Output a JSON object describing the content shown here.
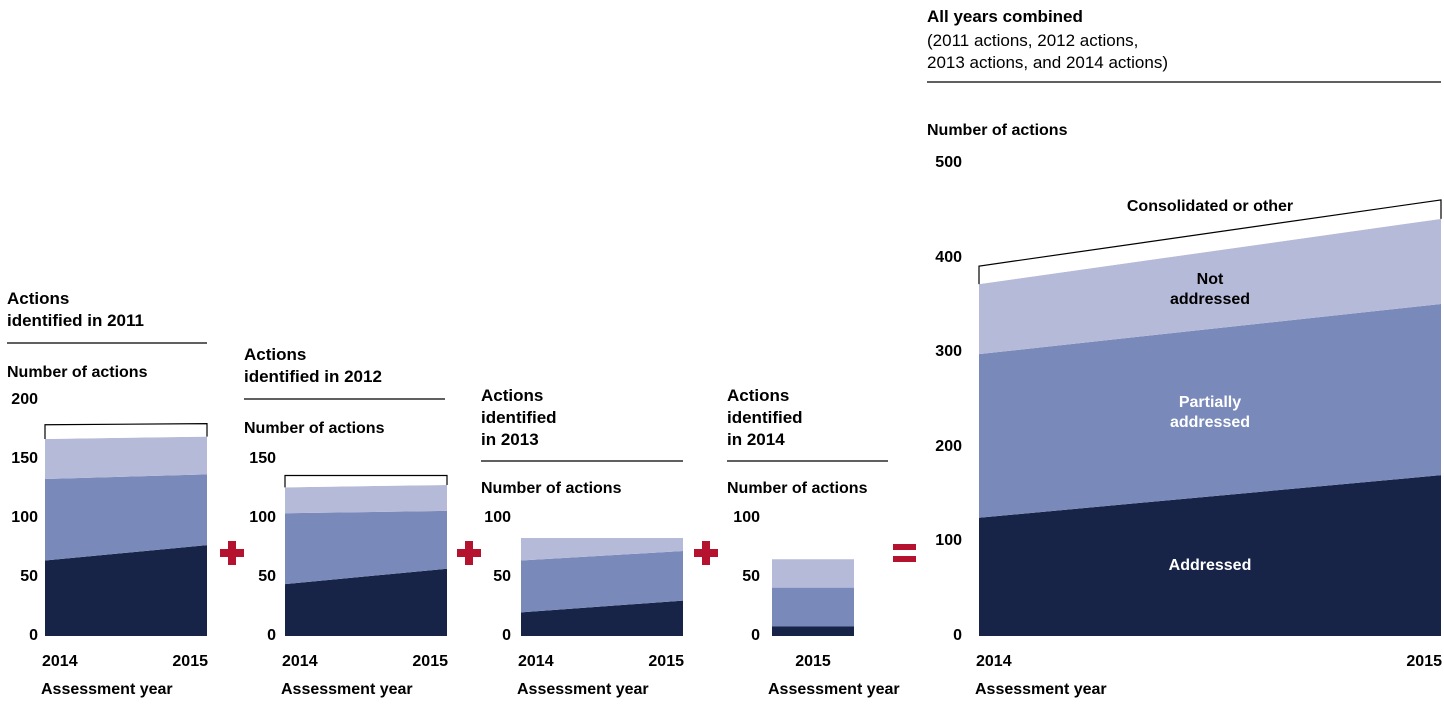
{
  "chart_data": [
    {
      "type": "area",
      "title": "Actions identified in 2011",
      "y_label": "Number of actions",
      "x_label": "Assessment year",
      "categories": [
        "2014",
        "2015"
      ],
      "ylim": [
        0,
        200
      ],
      "yticks": [
        0,
        50,
        100,
        150,
        200
      ],
      "series": [
        {
          "color": "#172447",
          "values": [
            64,
            77
          ]
        },
        {
          "color": "#7889ba",
          "values": [
            69,
            60
          ]
        },
        {
          "color": "#b6bad9",
          "values": [
            34,
            32
          ]
        },
        {
          "color": "#ffffff",
          "edgecolor": "#000000",
          "values": [
            12,
            11
          ]
        }
      ]
    },
    {
      "type": "area",
      "title": "Actions identified in 2012",
      "y_label": "Number of actions",
      "x_label": "Assessment year",
      "categories": [
        "2014",
        "2015"
      ],
      "ylim": [
        0,
        150
      ],
      "yticks": [
        0,
        50,
        100,
        150
      ],
      "series": [
        {
          "color": "#172447",
          "values": [
            44,
            57
          ]
        },
        {
          "color": "#7889ba",
          "values": [
            60,
            49
          ]
        },
        {
          "color": "#b6bad9",
          "values": [
            22,
            22
          ]
        },
        {
          "color": "#ffffff",
          "edgecolor": "#000000",
          "values": [
            10,
            8
          ]
        }
      ]
    },
    {
      "type": "area",
      "title": "Actions identified in 2013",
      "y_label": "Number of actions",
      "x_label": "Assessment year",
      "categories": [
        "2014",
        "2015"
      ],
      "ylim": [
        0,
        100
      ],
      "yticks": [
        0,
        50,
        100
      ],
      "series": [
        {
          "color": "#172447",
          "values": [
            20,
            30
          ]
        },
        {
          "color": "#7889ba",
          "values": [
            44,
            42
          ]
        },
        {
          "color": "#b6bad9",
          "values": [
            19,
            11
          ]
        }
      ]
    },
    {
      "type": "area",
      "title": "Actions identified in 2014",
      "y_label": "Number of actions",
      "x_label": "Assessment year",
      "categories": [
        "2015"
      ],
      "ylim": [
        0,
        100
      ],
      "yticks": [
        0,
        50,
        100
      ],
      "series": [
        {
          "color": "#172447",
          "values": [
            8
          ]
        },
        {
          "color": "#7889ba",
          "values": [
            33
          ]
        },
        {
          "color": "#b6bad9",
          "values": [
            24
          ]
        }
      ]
    },
    {
      "type": "area",
      "title": "All years combined",
      "subtitle": "(2011 actions, 2012 actions, 2013 actions, and 2014 actions)",
      "y_label": "Number of actions",
      "x_label": "Assessment year",
      "categories": [
        "2014",
        "2015"
      ],
      "ylim": [
        0,
        500
      ],
      "yticks": [
        0,
        100,
        200,
        300,
        400,
        500
      ],
      "series": [
        {
          "name": "Addressed",
          "color": "#172447",
          "values": [
            125,
            170
          ]
        },
        {
          "name": "Partially addressed",
          "color": "#7889ba",
          "values": [
            173,
            181
          ]
        },
        {
          "name": "Not addressed",
          "color": "#b6bad9",
          "values": [
            74,
            90
          ]
        },
        {
          "name": "Consolidated or other",
          "color": "#ffffff",
          "edgecolor": "#000000",
          "values": [
            19,
            20
          ]
        }
      ]
    }
  ]
}
